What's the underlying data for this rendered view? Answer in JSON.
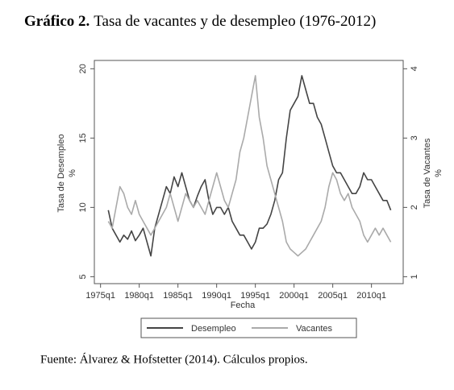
{
  "chart_data": {
    "type": "line",
    "title_bold": "Gráfico 2.",
    "title": "Tasa de vacantes y de desempleo (1976-2012)",
    "ylabel": [
      "Tasa de Desempleo",
      "%"
    ],
    "y2label": [
      "Tasa de Vacantes",
      "%"
    ],
    "xlabel": "Fecha",
    "source": "Fuente: Álvarez & Hofstetter (2014). Cálculos propios.",
    "x": [
      1976,
      1976.5,
      1977,
      1977.5,
      1978,
      1978.5,
      1979,
      1979.5,
      1980,
      1980.5,
      1981,
      1981.5,
      1982,
      1982.5,
      1983,
      1983.5,
      1984,
      1984.5,
      1985,
      1985.5,
      1986,
      1986.5,
      1987,
      1987.5,
      1988,
      1988.5,
      1989,
      1989.5,
      1990,
      1990.5,
      1991,
      1991.5,
      1992,
      1992.5,
      1993,
      1993.5,
      1994,
      1994.5,
      1995,
      1995.5,
      1996,
      1996.5,
      1997,
      1997.5,
      1998,
      1998.5,
      1999,
      1999.5,
      2000,
      2000.5,
      2001,
      2001.5,
      2002,
      2002.5,
      2003,
      2003.5,
      2004,
      2004.5,
      2005,
      2005.5,
      2006,
      2006.5,
      2007,
      2007.5,
      2008,
      2008.5,
      2009,
      2009.5,
      2010,
      2010.5,
      2011,
      2011.5,
      2012,
      2012.5
    ],
    "series": [
      {
        "name": "Desempleo",
        "color": "#444444",
        "values": [
          9.8,
          8.5,
          8.0,
          7.5,
          8.0,
          7.7,
          8.3,
          7.6,
          8.0,
          8.5,
          7.5,
          6.5,
          8.5,
          9.5,
          10.5,
          11.5,
          11.0,
          12.2,
          11.5,
          12.5,
          11.5,
          10.5,
          10.0,
          10.8,
          11.5,
          12.0,
          10.5,
          9.5,
          10.0,
          10.0,
          9.5,
          10.0,
          9.0,
          8.5,
          8.0,
          8.0,
          7.5,
          7.0,
          7.5,
          8.5,
          8.5,
          8.8,
          9.5,
          10.5,
          12.0,
          12.5,
          15.0,
          17.0,
          17.5,
          18.0,
          19.5,
          18.5,
          17.5,
          17.5,
          16.5,
          16.0,
          15.0,
          14.0,
          13.0,
          12.5,
          12.5,
          12.0,
          11.5,
          11.0,
          11.0,
          11.5,
          12.5,
          12.0,
          12.0,
          11.5,
          11.0,
          10.5,
          10.5,
          9.8
        ]
      },
      {
        "name": "Vacantes",
        "color": "#aaaaaa",
        "axis": "y2",
        "values": [
          1.8,
          1.7,
          2.0,
          2.3,
          2.2,
          2.0,
          1.9,
          2.1,
          1.9,
          1.8,
          1.7,
          1.6,
          1.7,
          1.8,
          1.9,
          2.0,
          2.2,
          2.0,
          1.8,
          2.0,
          2.2,
          2.1,
          2.0,
          2.1,
          2.0,
          1.9,
          2.1,
          2.3,
          2.5,
          2.3,
          2.1,
          2.0,
          2.2,
          2.4,
          2.8,
          3.0,
          3.3,
          3.6,
          3.9,
          3.3,
          3.0,
          2.6,
          2.4,
          2.2,
          2.0,
          1.8,
          1.5,
          1.4,
          1.35,
          1.3,
          1.35,
          1.4,
          1.5,
          1.6,
          1.7,
          1.8,
          2.0,
          2.3,
          2.5,
          2.4,
          2.2,
          2.1,
          2.2,
          2.0,
          1.9,
          1.8,
          1.6,
          1.5,
          1.6,
          1.7,
          1.6,
          1.7,
          1.6,
          1.5
        ]
      }
    ],
    "xlim": [
      1974.2,
      2014.1
    ],
    "xticks": [
      {
        "value": 1975,
        "label": "1975q1"
      },
      {
        "value": 1980,
        "label": "1980q1"
      },
      {
        "value": 1985,
        "label": "1985q1"
      },
      {
        "value": 1990,
        "label": "1990q1"
      },
      {
        "value": 1995,
        "label": "1995q1"
      },
      {
        "value": 2000,
        "label": "2000q1"
      },
      {
        "value": 2005,
        "label": "2005q1"
      },
      {
        "value": 2010,
        "label": "2010q1"
      }
    ],
    "ylim": [
      4.5,
      20.6
    ],
    "yticks": [
      5,
      10,
      15,
      20
    ],
    "y2lim": [
      0.9,
      4.12
    ],
    "y2ticks": [
      1,
      2,
      3,
      4
    ],
    "legend": "bottom"
  }
}
